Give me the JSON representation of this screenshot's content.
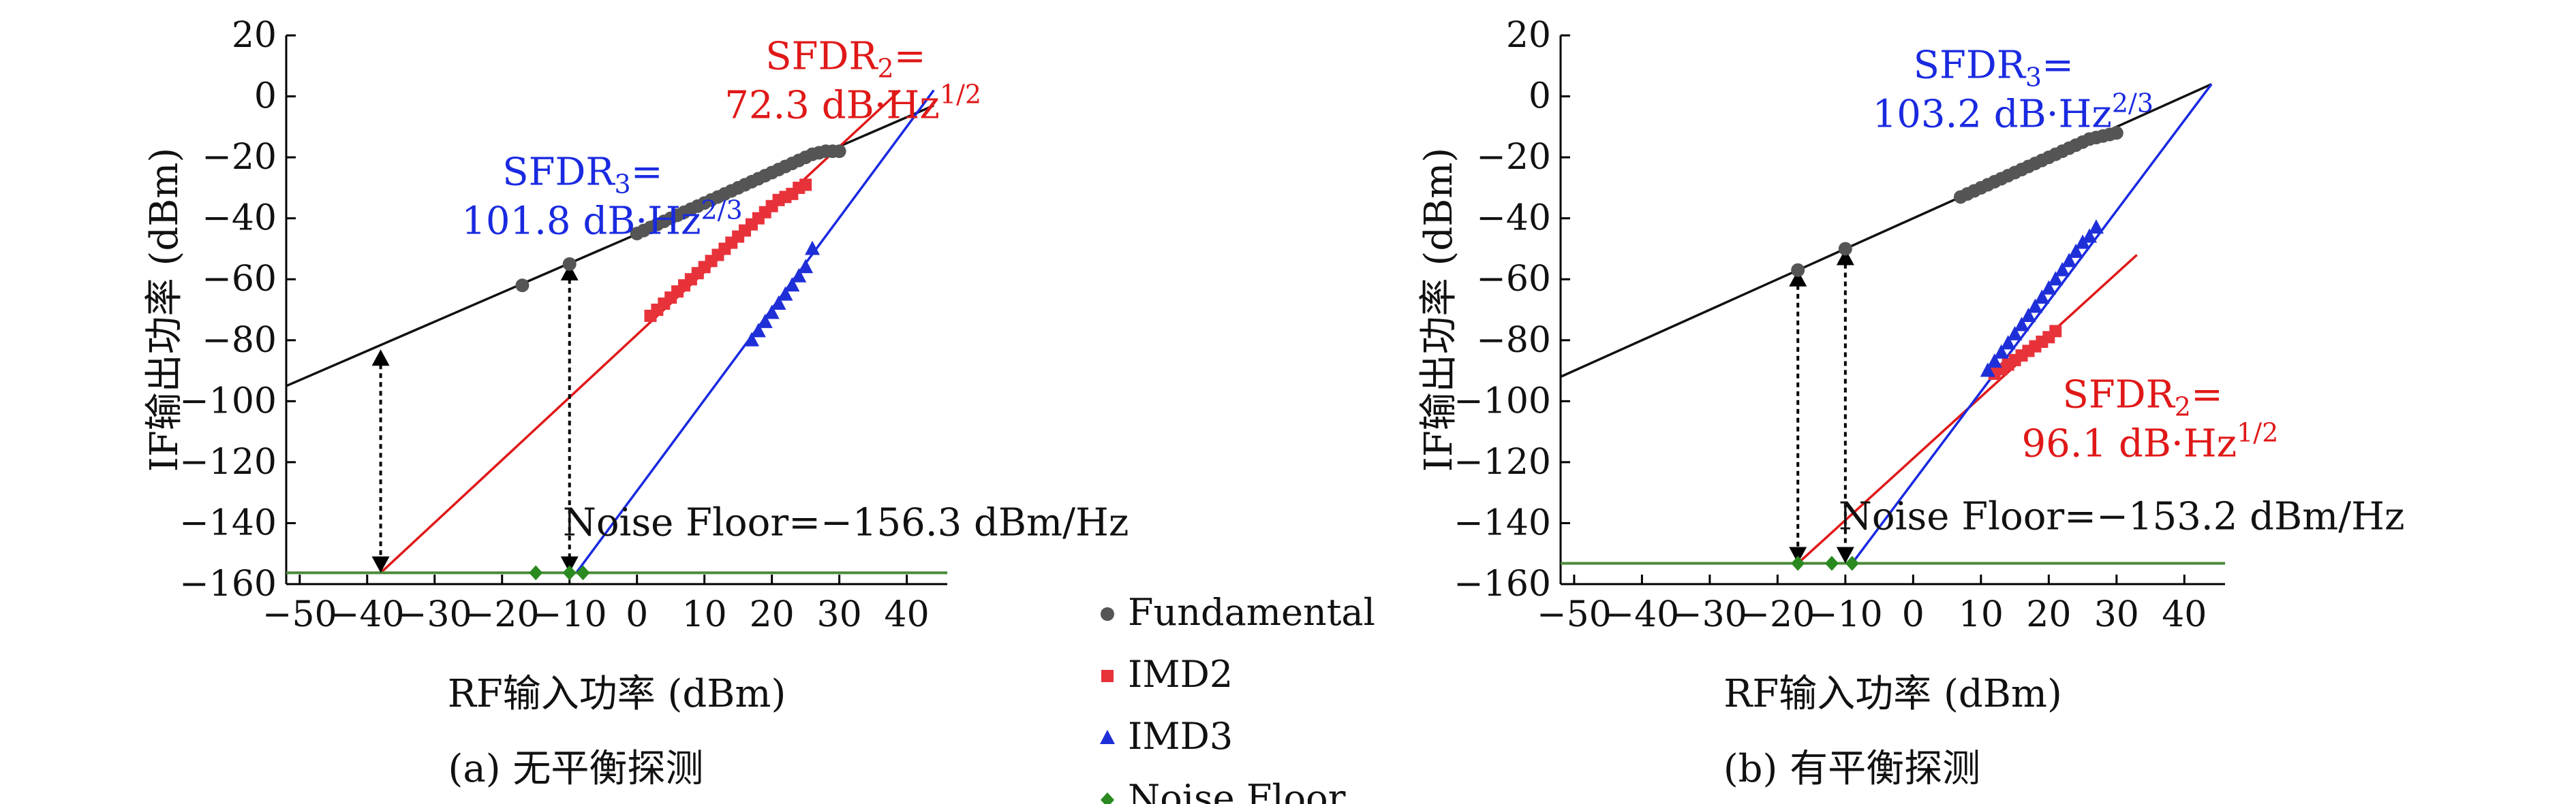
{
  "colors": {
    "fundamental": "#555555",
    "imd2": "#e8323a",
    "imd3": "#1f2fd8",
    "noise": "#2a8a20",
    "fit_fund": "#111111",
    "fit_imd2": "#e01818",
    "fit_imd3": "#1a2ae0",
    "fit_noise": "#4a8a3a"
  },
  "legend": {
    "placement": "center-bottom",
    "entries": [
      {
        "key": "fundamental",
        "label": "Fundamental",
        "marker": "circle"
      },
      {
        "key": "imd2",
        "label": "IMD2",
        "marker": "square"
      },
      {
        "key": "imd3",
        "label": "IMD3",
        "marker": "triangle"
      },
      {
        "key": "noise",
        "label": "Noise Floor",
        "marker": "diamond"
      }
    ]
  },
  "chart_data": [
    {
      "type": "scatter",
      "caption": "(a) 无平衡探测",
      "xlabel": "RF输入功率 (dBm)",
      "ylabel": "IF输出功率 (dBm)",
      "xlim": [
        -52,
        46
      ],
      "ylim": [
        -160,
        20
      ],
      "xticks": [
        -50,
        -40,
        -30,
        -20,
        -10,
        0,
        10,
        20,
        30,
        40
      ],
      "yticks": [
        20,
        0,
        -20,
        -40,
        -60,
        -80,
        -100,
        -120,
        -140,
        -160
      ],
      "grid": false,
      "series": [
        {
          "name": "Fundamental",
          "key": "fundamental",
          "x": [
            -17,
            -10,
            0,
            1,
            2,
            3,
            4,
            5,
            6,
            7,
            8,
            9,
            10,
            11,
            12,
            13,
            14,
            15,
            16,
            17,
            18,
            19,
            20,
            21,
            22,
            23,
            24,
            25,
            26,
            27,
            28,
            29,
            30
          ],
          "y": [
            -62,
            -55,
            -45,
            -44,
            -43,
            -42,
            -41,
            -40,
            -39,
            -38,
            -37,
            -36,
            -35,
            -34,
            -33,
            -32,
            -31,
            -30,
            -29,
            -28,
            -27,
            -26,
            -25,
            -24,
            -23,
            -22,
            -21,
            -20,
            -19,
            -18.5,
            -18,
            -18,
            -18
          ]
        },
        {
          "name": "IMD2",
          "key": "imd2",
          "x": [
            2,
            3,
            4,
            5,
            6,
            7,
            8,
            9,
            10,
            11,
            12,
            13,
            14,
            15,
            16,
            17,
            18,
            19,
            20,
            21,
            22,
            23,
            24,
            25
          ],
          "y": [
            -72,
            -70,
            -68,
            -66,
            -64,
            -62,
            -60,
            -58,
            -56,
            -54,
            -52,
            -50,
            -48,
            -46,
            -44,
            -42,
            -40,
            -38,
            -36,
            -34,
            -33,
            -32,
            -30,
            -29
          ]
        },
        {
          "name": "IMD3",
          "key": "imd3",
          "x": [
            17,
            18,
            19,
            20,
            21,
            22,
            23,
            24,
            25,
            26
          ],
          "y": [
            -80,
            -77,
            -74,
            -71,
            -68,
            -65,
            -62,
            -59,
            -56,
            -50
          ]
        },
        {
          "name": "Noise Floor",
          "key": "noise",
          "x": [
            -15,
            -10,
            -8
          ],
          "y": [
            -156.3,
            -156.3,
            -156.3
          ]
        }
      ],
      "fits": [
        {
          "key": "fit_fund",
          "x": [
            -52,
            44
          ],
          "y": [
            -95,
            -3
          ]
        },
        {
          "key": "fit_imd2",
          "x": [
            -38,
            39
          ],
          "y": [
            -156.3,
            2
          ]
        },
        {
          "key": "fit_imd3",
          "x": [
            -9,
            44
          ],
          "y": [
            -156.3,
            2
          ]
        },
        {
          "key": "fit_noise",
          "x": [
            -52,
            46
          ],
          "y": [
            -156.3,
            -156.3
          ]
        }
      ],
      "arrows": [
        {
          "x": -38,
          "y1": -83,
          "y2": -156.3
        },
        {
          "x": -10,
          "y1": -55,
          "y2": -156.3
        }
      ],
      "annotations": [
        {
          "key": "imd2",
          "base": "SFDR",
          "sub": "2",
          "eq": "=",
          "value": "72.3 dB·Hz",
          "sup": "1/2",
          "tx": 14,
          "ty": 9
        },
        {
          "key": "imd3",
          "base": "SFDR",
          "sub": "3",
          "eq": "=",
          "value": "101.8 dB·Hz",
          "sup": "2/3",
          "tx": -25,
          "ty": -29
        },
        {
          "key": "plain",
          "text": "Noise Floor=−156.3 dBm/Hz",
          "tx": -11,
          "ty": -144
        }
      ]
    },
    {
      "type": "scatter",
      "caption": "(b) 有平衡探测",
      "xlabel": "RF输入功率 (dBm)",
      "ylabel": "IF输出功率 (dBm)",
      "xlim": [
        -52,
        46
      ],
      "ylim": [
        -160,
        20
      ],
      "xticks": [
        -50,
        -40,
        -30,
        -20,
        -10,
        0,
        10,
        20,
        30,
        40
      ],
      "yticks": [
        20,
        0,
        -20,
        -40,
        -60,
        -80,
        -100,
        -120,
        -140,
        -160
      ],
      "grid": false,
      "series": [
        {
          "name": "Fundamental",
          "key": "fundamental",
          "x": [
            -17,
            -10,
            7,
            8,
            9,
            10,
            11,
            12,
            13,
            14,
            15,
            16,
            17,
            18,
            19,
            20,
            21,
            22,
            23,
            24,
            25,
            26,
            27,
            28,
            29,
            30
          ],
          "y": [
            -57,
            -50,
            -33,
            -32,
            -31,
            -30,
            -29,
            -28,
            -27,
            -26,
            -25,
            -24,
            -23,
            -22,
            -21,
            -20,
            -19,
            -18,
            -17,
            -16,
            -15,
            -14,
            -13.5,
            -13,
            -12.5,
            -12
          ]
        },
        {
          "name": "IMD2",
          "key": "imd2",
          "x": [
            12,
            13,
            14,
            15,
            16,
            17,
            18,
            19,
            20,
            21
          ],
          "y": [
            -91,
            -89.5,
            -88,
            -86.5,
            -85,
            -83.5,
            -82,
            -80.5,
            -79,
            -77
          ]
        },
        {
          "name": "IMD3",
          "key": "imd3",
          "x": [
            11,
            12,
            13,
            14,
            15,
            16,
            17,
            18,
            19,
            20,
            21,
            22,
            23,
            24,
            25,
            26,
            27
          ],
          "y": [
            -90,
            -87,
            -84,
            -81,
            -78,
            -75,
            -72,
            -69,
            -66,
            -63,
            -60,
            -57,
            -54,
            -51,
            -48,
            -46,
            -43
          ]
        },
        {
          "name": "Noise Floor",
          "key": "noise",
          "x": [
            -17,
            -12,
            -9
          ],
          "y": [
            -153.2,
            -153.2,
            -153.2
          ]
        }
      ],
      "fits": [
        {
          "key": "fit_fund",
          "x": [
            -52,
            44
          ],
          "y": [
            -92,
            4
          ]
        },
        {
          "key": "fit_imd2",
          "x": [
            -17,
            33
          ],
          "y": [
            -153.2,
            -52
          ]
        },
        {
          "key": "fit_imd3",
          "x": [
            -9,
            44
          ],
          "y": [
            -153.2,
            4
          ]
        },
        {
          "key": "fit_noise",
          "x": [
            -52,
            46
          ],
          "y": [
            -153.2,
            -153.2
          ]
        }
      ],
      "arrows": [
        {
          "x": -17,
          "y1": -57,
          "y2": -153.2
        },
        {
          "x": -10,
          "y1": -50,
          "y2": -153.2
        }
      ],
      "annotations": [
        {
          "key": "imd3",
          "base": "SFDR",
          "sub": "3",
          "eq": "=",
          "value": "103.2 dB·Hz",
          "sup": "2/3",
          "tx": -5,
          "ty": 6
        },
        {
          "key": "imd2",
          "base": "SFDR",
          "sub": "2",
          "eq": "=",
          "value": "96.1 dB·Hz",
          "sup": "1/2",
          "tx": 17,
          "ty": -102
        },
        {
          "key": "plain",
          "text": "Noise Floor=−153.2 dBm/Hz",
          "tx": -11,
          "ty": -142
        }
      ]
    }
  ]
}
